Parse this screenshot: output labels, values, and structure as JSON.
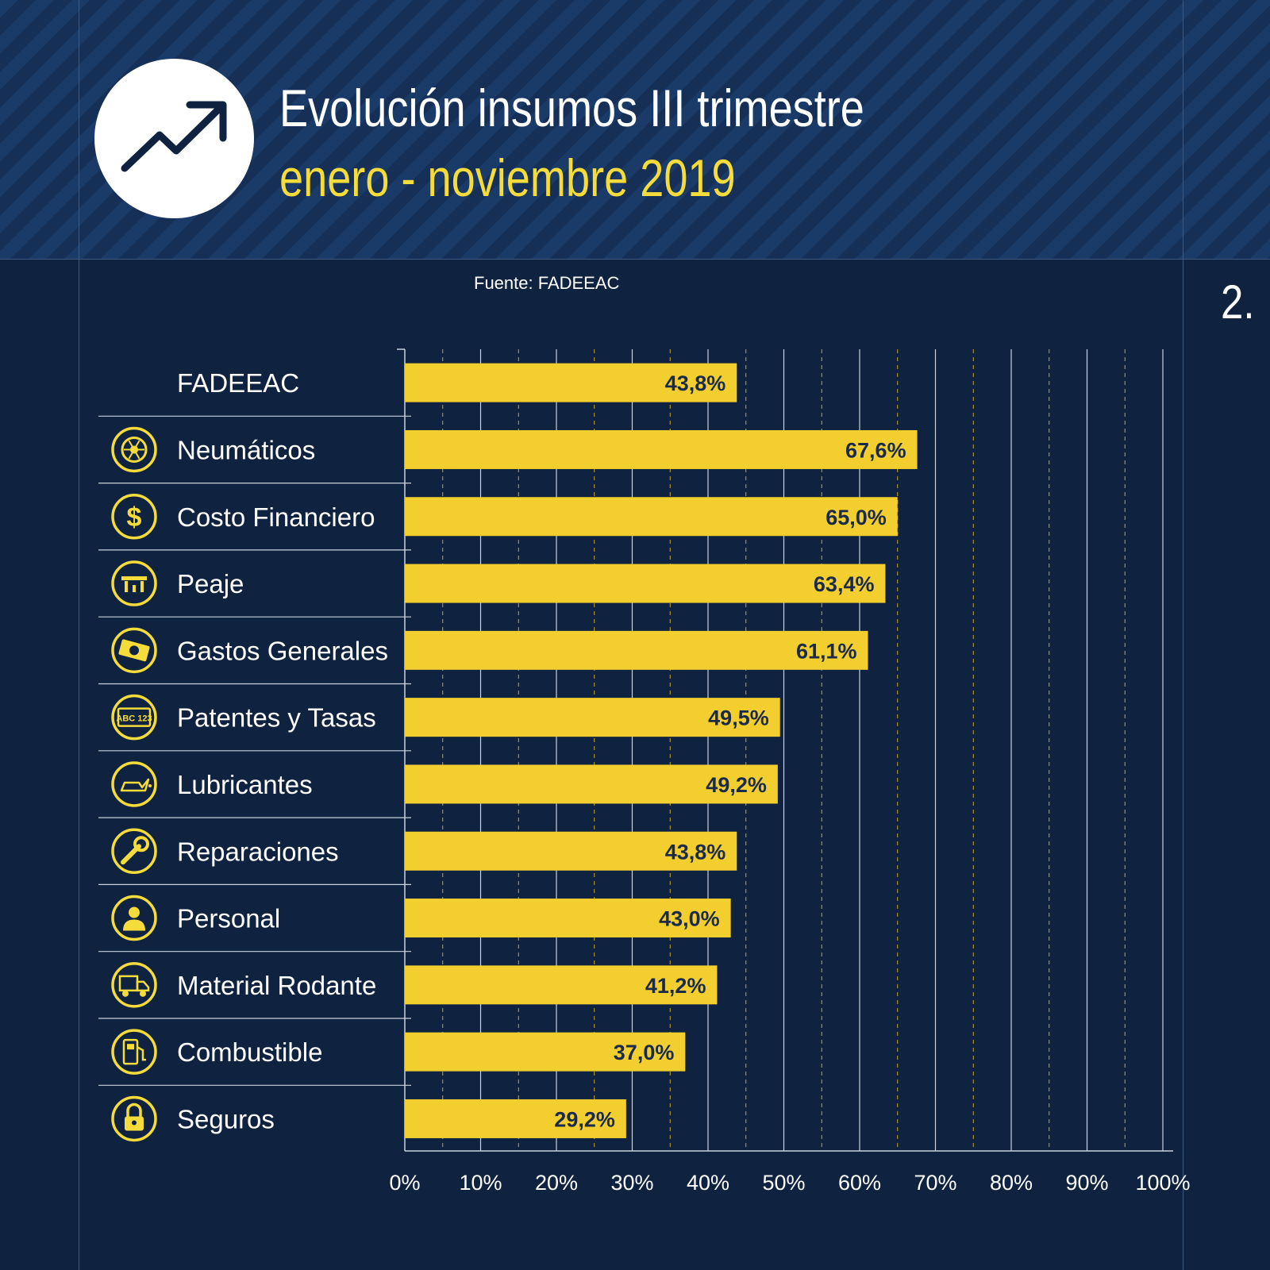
{
  "header": {
    "title": "Evolución insumos III trimestre",
    "subtitle": "enero - noviembre 2019",
    "icon": "trend-up-arrow-icon"
  },
  "source": "Fuente: FADEEAC",
  "page_number": "2.",
  "colors": {
    "background": "#0f2240",
    "bar": "#f2cf2e",
    "accent_yellow": "#f5dc3a",
    "label_dark": "#1a2a48"
  },
  "chart_data": {
    "type": "bar",
    "orientation": "horizontal",
    "categories": [
      "FADEEAC",
      "Neumáticos",
      "Costo Financiero",
      "Peaje",
      "Gastos Generales",
      "Patentes y Tasas",
      "Lubricantes",
      "Reparaciones",
      "Personal",
      "Material Rodante",
      "Combustible",
      "Seguros"
    ],
    "values": [
      43.8,
      67.6,
      65.0,
      63.4,
      61.1,
      49.5,
      49.2,
      43.8,
      43.0,
      41.2,
      37.0,
      29.2
    ],
    "value_labels": [
      "43,8%",
      "67,6%",
      "65,0%",
      "63,4%",
      "61,1%",
      "49,5%",
      "49,2%",
      "43,8%",
      "43,0%",
      "41,2%",
      "37,0%",
      "29,2%"
    ],
    "icons": [
      "",
      "tire-icon",
      "dollar-coin-icon",
      "toll-barrier-icon",
      "money-bill-icon",
      "license-plate-icon",
      "oil-can-icon",
      "wrench-icon",
      "person-icon",
      "truck-icon",
      "fuel-pump-icon",
      "padlock-icon"
    ],
    "xlim": [
      0,
      100
    ],
    "xticks": [
      "0%",
      "10%",
      "20%",
      "30%",
      "40%",
      "50%",
      "60%",
      "70%",
      "80%",
      "90%",
      "100%"
    ],
    "grid": true
  }
}
